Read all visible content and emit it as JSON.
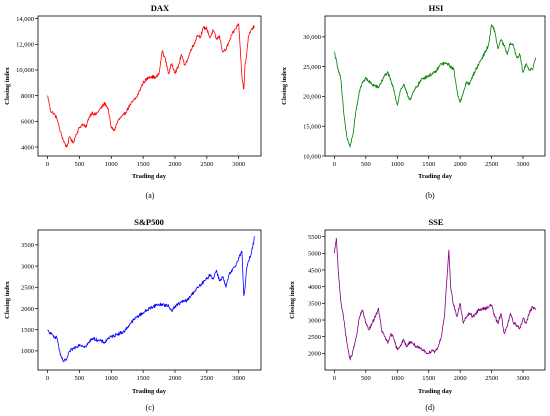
{
  "chart_data": [
    {
      "id": "dax",
      "type": "line",
      "title": "DAX",
      "xlabel": "Trading day",
      "ylabel": "Closing index",
      "caption": "(a)",
      "color": "#ff0000",
      "xlim": [
        -150,
        3350
      ],
      "ylim": [
        3300,
        14200
      ],
      "xticks": [
        0,
        500,
        1000,
        1500,
        2000,
        2500,
        3000
      ],
      "yticks": [
        4000,
        6000,
        8000,
        10000,
        12000,
        14000
      ],
      "ytick_labels": [
        "4000",
        "6000",
        "8000",
        "10,000",
        "12,000",
        "14,000"
      ],
      "x": [
        0,
        50,
        100,
        150,
        200,
        250,
        300,
        350,
        400,
        450,
        500,
        550,
        600,
        650,
        700,
        750,
        800,
        850,
        900,
        950,
        1000,
        1050,
        1100,
        1150,
        1200,
        1300,
        1400,
        1500,
        1600,
        1700,
        1750,
        1800,
        1850,
        1900,
        1950,
        2000,
        2050,
        2100,
        2150,
        2200,
        2250,
        2300,
        2350,
        2400,
        2450,
        2500,
        2550,
        2600,
        2650,
        2700,
        2750,
        2800,
        2850,
        2900,
        2950,
        3000,
        3050,
        3080,
        3100,
        3120,
        3150,
        3200,
        3250
      ],
      "y": [
        8000,
        6800,
        6600,
        6200,
        5200,
        4500,
        4000,
        4800,
        4300,
        5000,
        5500,
        5800,
        5500,
        6300,
        6700,
        6500,
        6800,
        7100,
        7400,
        7000,
        5500,
        5300,
        6000,
        6300,
        6500,
        7300,
        7900,
        9000,
        9500,
        9400,
        9700,
        11500,
        10800,
        9700,
        10500,
        9800,
        10200,
        11200,
        10400,
        10800,
        11600,
        12000,
        12700,
        12600,
        13300,
        13200,
        12500,
        13100,
        12400,
        12600,
        11400,
        11600,
        12200,
        12800,
        13200,
        13600,
        9500,
        8500,
        10500,
        11000,
        12500,
        13200,
        13400
      ]
    },
    {
      "id": "hsi",
      "type": "line",
      "title": "HSI",
      "xlabel": "Trading day",
      "ylabel": "Closing index",
      "caption": "(b)",
      "color": "#008000",
      "xlim": [
        -150,
        3350
      ],
      "ylim": [
        10000,
        33500
      ],
      "xticks": [
        0,
        500,
        1000,
        1500,
        2000,
        2500,
        3000
      ],
      "yticks": [
        10000,
        15000,
        20000,
        25000,
        30000
      ],
      "ytick_labels": [
        "10,000",
        "15,000",
        "20,000",
        "25,000",
        "30,000"
      ],
      "x": [
        0,
        50,
        100,
        150,
        200,
        250,
        300,
        350,
        400,
        450,
        500,
        600,
        700,
        800,
        850,
        900,
        950,
        1000,
        1050,
        1100,
        1150,
        1200,
        1300,
        1400,
        1500,
        1600,
        1700,
        1800,
        1900,
        1950,
        2000,
        2050,
        2100,
        2150,
        2200,
        2300,
        2400,
        2450,
        2500,
        2550,
        2600,
        2650,
        2700,
        2750,
        2800,
        2850,
        2900,
        2950,
        3000,
        3050,
        3100,
        3150,
        3200
      ],
      "y": [
        27500,
        25000,
        23000,
        17000,
        13000,
        11500,
        14000,
        18000,
        21000,
        22500,
        23000,
        22000,
        21500,
        23500,
        24000,
        22500,
        21000,
        18500,
        21000,
        22000,
        20500,
        19500,
        21500,
        23000,
        23500,
        24000,
        25500,
        25500,
        24500,
        21000,
        19000,
        20500,
        22500,
        22000,
        23500,
        25500,
        27500,
        28500,
        32000,
        31000,
        28000,
        29500,
        28500,
        27000,
        29000,
        28500,
        26500,
        27000,
        24000,
        25500,
        24500,
        24500,
        26500
      ]
    },
    {
      "id": "sp500",
      "type": "line",
      "title": "S&P500",
      "xlabel": "Trading day",
      "ylabel": "Closing index",
      "caption": "(c)",
      "color": "#0000ff",
      "xlim": [
        -150,
        3350
      ],
      "ylim": [
        550,
        3850
      ],
      "xticks": [
        0,
        500,
        1000,
        1500,
        2000,
        2500,
        3000
      ],
      "yticks": [
        1000,
        1500,
        2000,
        2500,
        3000,
        3500
      ],
      "ytick_labels": [
        "1000",
        "1500",
        "2000",
        "2500",
        "3000",
        "3500"
      ],
      "x": [
        0,
        50,
        100,
        150,
        200,
        250,
        300,
        350,
        400,
        450,
        500,
        600,
        700,
        800,
        900,
        950,
        1000,
        1100,
        1200,
        1300,
        1400,
        1500,
        1600,
        1700,
        1800,
        1900,
        1950,
        2000,
        2050,
        2100,
        2200,
        2300,
        2400,
        2500,
        2550,
        2600,
        2650,
        2700,
        2750,
        2800,
        2850,
        2900,
        2950,
        3000,
        3050,
        3080,
        3100,
        3120,
        3150,
        3200,
        3250
      ],
      "y": [
        1480,
        1400,
        1350,
        1300,
        900,
        750,
        800,
        1000,
        1050,
        1100,
        1150,
        1100,
        1300,
        1250,
        1200,
        1300,
        1330,
        1400,
        1450,
        1650,
        1800,
        1900,
        2000,
        2080,
        2100,
        2050,
        1950,
        2050,
        2100,
        2150,
        2200,
        2400,
        2550,
        2700,
        2800,
        2700,
        2900,
        2650,
        2750,
        2500,
        2800,
        2900,
        3000,
        3200,
        3350,
        2300,
        2500,
        2900,
        3100,
        3300,
        3700
      ]
    },
    {
      "id": "sse",
      "type": "line",
      "title": "SSE",
      "xlabel": "Trading day",
      "ylabel": "Closing index",
      "caption": "(d)",
      "color": "#800080",
      "xlim": [
        -150,
        3350
      ],
      "ylim": [
        1500,
        5700
      ],
      "xticks": [
        0,
        500,
        1000,
        1500,
        2000,
        2500,
        3000
      ],
      "yticks": [
        2000,
        2500,
        3000,
        3500,
        4000,
        4500,
        5000,
        5500
      ],
      "ytick_labels": [
        "2000",
        "2500",
        "3000",
        "3500",
        "4000",
        "4500",
        "5000",
        "5500"
      ],
      "x": [
        0,
        30,
        60,
        100,
        150,
        200,
        250,
        300,
        350,
        400,
        450,
        500,
        550,
        600,
        650,
        700,
        750,
        800,
        850,
        900,
        950,
        1000,
        1050,
        1100,
        1150,
        1200,
        1250,
        1300,
        1350,
        1400,
        1450,
        1500,
        1550,
        1600,
        1650,
        1700,
        1750,
        1800,
        1820,
        1850,
        1880,
        1920,
        1950,
        2000,
        2050,
        2100,
        2150,
        2200,
        2300,
        2400,
        2500,
        2550,
        2600,
        2650,
        2700,
        2750,
        2800,
        2850,
        2900,
        2950,
        3000,
        3050,
        3100,
        3150,
        3200
      ],
      "y": [
        5000,
        5450,
        4500,
        3600,
        3000,
        2300,
        1800,
        2100,
        2500,
        3100,
        3300,
        2900,
        2700,
        2900,
        3100,
        3350,
        2700,
        2500,
        2300,
        2600,
        2400,
        2100,
        2250,
        2400,
        2200,
        2350,
        2300,
        2200,
        2150,
        2100,
        2050,
        2000,
        2100,
        2050,
        2200,
        2500,
        3100,
        4500,
        5100,
        4000,
        3600,
        3300,
        3100,
        3500,
        2900,
        3100,
        3200,
        3100,
        3300,
        3350,
        3450,
        3100,
        2900,
        3200,
        2600,
        2800,
        3200,
        2900,
        2850,
        2750,
        3050,
        2900,
        3200,
        3400,
        3300
      ]
    }
  ]
}
